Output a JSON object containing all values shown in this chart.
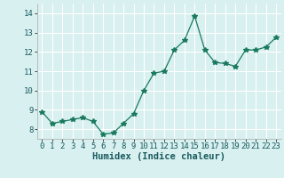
{
  "x": [
    0,
    1,
    2,
    3,
    4,
    5,
    6,
    7,
    8,
    9,
    10,
    11,
    12,
    13,
    14,
    15,
    16,
    17,
    18,
    19,
    20,
    21,
    22,
    23
  ],
  "y": [
    8.9,
    8.3,
    8.4,
    8.5,
    8.6,
    8.4,
    7.75,
    7.8,
    8.3,
    8.8,
    10.0,
    10.9,
    11.0,
    12.1,
    12.6,
    13.85,
    12.1,
    11.45,
    11.4,
    11.25,
    12.1,
    12.1,
    12.25,
    12.75
  ],
  "xlabel": "Humidex (Indice chaleur)",
  "ylim": [
    7.5,
    14.5
  ],
  "xlim": [
    -0.5,
    23.5
  ],
  "yticks": [
    8,
    9,
    10,
    11,
    12,
    13,
    14
  ],
  "xticks": [
    0,
    1,
    2,
    3,
    4,
    5,
    6,
    7,
    8,
    9,
    10,
    11,
    12,
    13,
    14,
    15,
    16,
    17,
    18,
    19,
    20,
    21,
    22,
    23
  ],
  "line_color": "#1a7a5e",
  "marker": "*",
  "marker_color": "#1a7a5e",
  "marker_size": 4,
  "background_color": "#d8f0f0",
  "grid_color": "#ffffff",
  "xlabel_fontsize": 7.5,
  "tick_fontsize": 6.5
}
